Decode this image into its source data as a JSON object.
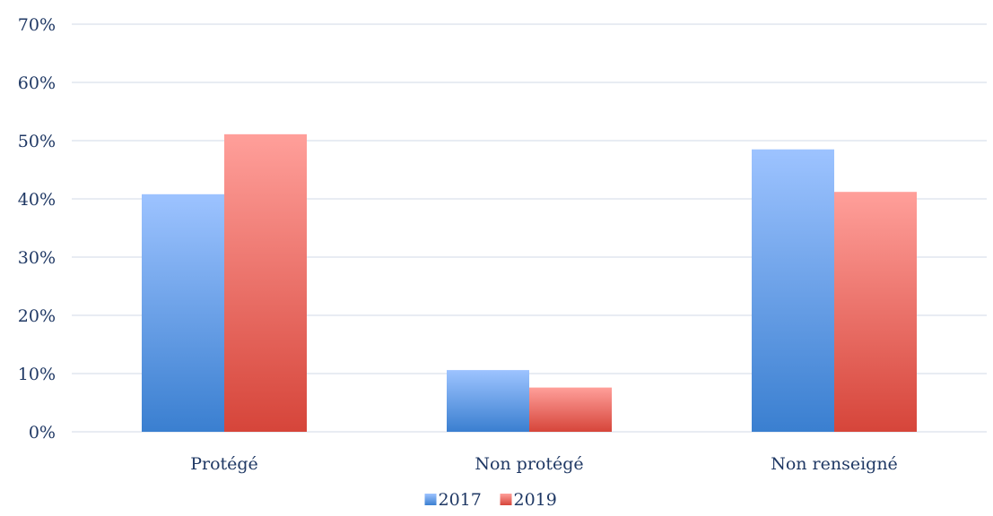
{
  "chart_data": {
    "type": "bar",
    "title": "",
    "xlabel": "",
    "ylabel": "",
    "categories": [
      "Protégé",
      "Non protégé",
      "Non renseigné"
    ],
    "series": [
      {
        "name": "2017",
        "values": [
          40.8,
          10.6,
          48.5
        ],
        "color_top": "#9dc3ff",
        "color_bottom": "#3a7fd0"
      },
      {
        "name": "2019",
        "values": [
          51.1,
          7.6,
          41.2
        ],
        "color_top": "#ff9f9a",
        "color_bottom": "#d6453a"
      }
    ],
    "ylim": [
      0,
      70
    ],
    "yticks": [
      0,
      10,
      20,
      30,
      40,
      50,
      60,
      70
    ],
    "ytick_labels": [
      "0%",
      "10%",
      "20%",
      "30%",
      "40%",
      "50%",
      "60%",
      "70%"
    ],
    "grid": true,
    "legend_position": "bottom",
    "colors": {
      "gridline": "#d9e1ec",
      "axis_text": "#1f3864"
    }
  }
}
